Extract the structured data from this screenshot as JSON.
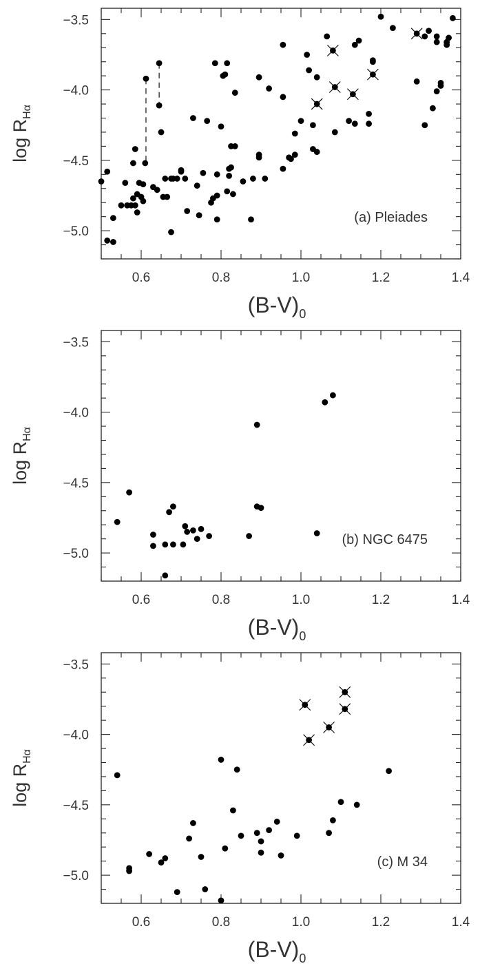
{
  "chart_data": [
    {
      "type": "scatter",
      "panel_label": "(a) Pleiades",
      "xlabel": "(B-V)",
      "xlabel_sub": "0",
      "ylabel": "log R",
      "ylabel_sub": "Hα",
      "xlim": [
        0.5,
        1.4
      ],
      "ylim": [
        -5.2,
        -3.42
      ],
      "xticks": [
        0.6,
        0.8,
        1.0,
        1.2,
        1.4
      ],
      "xtick_labels": [
        "0.6",
        "0.8",
        "1.0",
        "1.2",
        "1.4"
      ],
      "yticks": [
        -3.5,
        -4.0,
        -4.5,
        -5.0
      ],
      "ytick_labels": [
        "−3.5",
        "−4.0",
        "−4.5",
        "−5.0"
      ],
      "points": [
        [
          0.5,
          -4.65
        ],
        [
          0.515,
          -4.58
        ],
        [
          0.515,
          -5.07
        ],
        [
          0.53,
          -5.08
        ],
        [
          0.53,
          -4.91
        ],
        [
          0.55,
          -4.82
        ],
        [
          0.56,
          -4.66
        ],
        [
          0.565,
          -4.82
        ],
        [
          0.575,
          -4.82
        ],
        [
          0.58,
          -4.77
        ],
        [
          0.58,
          -4.52
        ],
        [
          0.585,
          -4.42
        ],
        [
          0.585,
          -4.82
        ],
        [
          0.59,
          -4.87
        ],
        [
          0.59,
          -4.74
        ],
        [
          0.595,
          -4.66
        ],
        [
          0.6,
          -4.76
        ],
        [
          0.605,
          -4.67
        ],
        [
          0.605,
          -4.79
        ],
        [
          0.61,
          -4.52
        ],
        [
          0.63,
          -4.69
        ],
        [
          0.64,
          -4.71
        ],
        [
          0.645,
          -4.11
        ],
        [
          0.65,
          -4.3
        ],
        [
          0.655,
          -4.76
        ],
        [
          0.66,
          -4.63
        ],
        [
          0.665,
          -4.76
        ],
        [
          0.675,
          -4.63
        ],
        [
          0.675,
          -5.01
        ],
        [
          0.68,
          -4.63
        ],
        [
          0.69,
          -4.63
        ],
        [
          0.7,
          -4.57
        ],
        [
          0.7,
          -4.58
        ],
        [
          0.71,
          -4.63
        ],
        [
          0.715,
          -4.86
        ],
        [
          0.73,
          -4.2
        ],
        [
          0.74,
          -4.68
        ],
        [
          0.745,
          -4.89
        ],
        [
          0.755,
          -4.59
        ],
        [
          0.765,
          -4.22
        ],
        [
          0.775,
          -4.8
        ],
        [
          0.78,
          -4.77
        ],
        [
          0.785,
          -3.81
        ],
        [
          0.79,
          -4.6
        ],
        [
          0.79,
          -4.75
        ],
        [
          0.79,
          -4.92
        ],
        [
          0.8,
          -4.26
        ],
        [
          0.805,
          -3.9
        ],
        [
          0.81,
          -3.89
        ],
        [
          0.815,
          -4.72
        ],
        [
          0.815,
          -3.81
        ],
        [
          0.82,
          -4.56
        ],
        [
          0.82,
          -4.61
        ],
        [
          0.825,
          -4.55
        ],
        [
          0.825,
          -4.4
        ],
        [
          0.83,
          -4.74
        ],
        [
          0.835,
          -4.4
        ],
        [
          0.835,
          -4.02
        ],
        [
          0.855,
          -4.65
        ],
        [
          0.875,
          -4.92
        ],
        [
          0.88,
          -4.63
        ],
        [
          0.895,
          -3.91
        ],
        [
          0.895,
          -4.46
        ],
        [
          0.895,
          -4.48
        ],
        [
          0.91,
          -4.63
        ],
        [
          0.92,
          -3.99
        ],
        [
          0.955,
          -3.68
        ],
        [
          0.955,
          -4.56
        ],
        [
          0.955,
          -4.05
        ],
        [
          0.97,
          -4.48
        ],
        [
          0.975,
          -4.49
        ],
        [
          0.985,
          -4.46
        ],
        [
          0.985,
          -4.31
        ],
        [
          1.0,
          -4.22
        ],
        [
          1.015,
          -3.75
        ],
        [
          1.02,
          -3.86
        ],
        [
          1.03,
          -4.25
        ],
        [
          1.03,
          -4.42
        ],
        [
          1.04,
          -3.91
        ],
        [
          1.04,
          -4.44
        ],
        [
          1.04,
          -4.1
        ],
        [
          1.065,
          -3.62
        ],
        [
          1.08,
          -3.72
        ],
        [
          1.085,
          -3.98
        ],
        [
          1.085,
          -4.3
        ],
        [
          1.12,
          -4.22
        ],
        [
          1.13,
          -4.03
        ],
        [
          1.135,
          -3.68
        ],
        [
          1.135,
          -4.24
        ],
        [
          1.145,
          -3.65
        ],
        [
          1.17,
          -4.17
        ],
        [
          1.17,
          -4.24
        ],
        [
          1.18,
          -3.89
        ],
        [
          1.18,
          -3.8
        ],
        [
          1.18,
          -3.79
        ],
        [
          1.2,
          -3.48
        ],
        [
          1.23,
          -3.56
        ],
        [
          1.29,
          -3.6
        ],
        [
          1.29,
          -3.94
        ],
        [
          1.31,
          -3.62
        ],
        [
          1.31,
          -4.25
        ],
        [
          1.32,
          -3.58
        ],
        [
          1.33,
          -4.13
        ],
        [
          1.34,
          -3.62
        ],
        [
          1.34,
          -3.66
        ],
        [
          1.34,
          -4.01
        ],
        [
          1.35,
          -3.95
        ],
        [
          1.35,
          -3.97
        ],
        [
          1.365,
          -3.66
        ],
        [
          1.365,
          -3.68
        ],
        [
          1.37,
          -3.63
        ],
        [
          1.38,
          -3.49
        ],
        [
          0.612,
          -3.92
        ],
        [
          0.645,
          -3.81
        ]
      ],
      "crossed": [
        [
          1.04,
          -4.1
        ],
        [
          1.08,
          -3.72
        ],
        [
          1.085,
          -3.98
        ],
        [
          1.13,
          -4.03
        ],
        [
          1.18,
          -3.89
        ],
        [
          1.29,
          -3.6
        ]
      ],
      "connectors": [
        [
          0.612,
          -3.92,
          0.612,
          -4.52
        ],
        [
          0.645,
          -3.81,
          0.645,
          -4.11
        ]
      ]
    },
    {
      "type": "scatter",
      "panel_label": "(b) NGC 6475",
      "xlabel": "(B-V)",
      "xlabel_sub": "0",
      "ylabel": "log R",
      "ylabel_sub": "Hα",
      "xlim": [
        0.5,
        1.4
      ],
      "ylim": [
        -5.2,
        -3.42
      ],
      "xticks": [
        0.6,
        0.8,
        1.0,
        1.2,
        1.4
      ],
      "xtick_labels": [
        "0.6",
        "0.8",
        "1.0",
        "1.2",
        "1.4"
      ],
      "yticks": [
        -3.5,
        -4.0,
        -4.5,
        -5.0
      ],
      "ytick_labels": [
        "−3.5",
        "−4.0",
        "−4.5",
        "−5.0"
      ],
      "points": [
        [
          0.54,
          -4.78
        ],
        [
          0.57,
          -4.57
        ],
        [
          0.63,
          -4.87
        ],
        [
          0.63,
          -4.95
        ],
        [
          0.66,
          -4.94
        ],
        [
          0.66,
          -5.16
        ],
        [
          0.67,
          -4.71
        ],
        [
          0.68,
          -4.67
        ],
        [
          0.68,
          -4.94
        ],
        [
          0.705,
          -4.94
        ],
        [
          0.71,
          -4.81
        ],
        [
          0.715,
          -4.85
        ],
        [
          0.73,
          -4.84
        ],
        [
          0.74,
          -4.9
        ],
        [
          0.75,
          -4.83
        ],
        [
          0.77,
          -4.88
        ],
        [
          0.87,
          -4.88
        ],
        [
          0.89,
          -4.09
        ],
        [
          0.89,
          -4.67
        ],
        [
          0.9,
          -4.68
        ],
        [
          1.04,
          -4.86
        ],
        [
          1.06,
          -3.93
        ],
        [
          1.08,
          -3.88
        ]
      ],
      "crossed": [],
      "connectors": []
    },
    {
      "type": "scatter",
      "panel_label": "(c) M 34",
      "xlabel": "(B-V)",
      "xlabel_sub": "0",
      "ylabel": "log R",
      "ylabel_sub": "Hα",
      "xlim": [
        0.5,
        1.4
      ],
      "ylim": [
        -5.2,
        -3.42
      ],
      "xticks": [
        0.6,
        0.8,
        1.0,
        1.2,
        1.4
      ],
      "xtick_labels": [
        "0.6",
        "0.8",
        "1.0",
        "1.2",
        "1.4"
      ],
      "yticks": [
        -3.5,
        -4.0,
        -4.5,
        -5.0
      ],
      "ytick_labels": [
        "−3.5",
        "−4.0",
        "−4.5",
        "−5.0"
      ],
      "points": [
        [
          0.54,
          -4.29
        ],
        [
          0.57,
          -4.95
        ],
        [
          0.57,
          -4.97
        ],
        [
          0.62,
          -4.85
        ],
        [
          0.65,
          -4.91
        ],
        [
          0.66,
          -4.88
        ],
        [
          0.69,
          -5.12
        ],
        [
          0.72,
          -4.74
        ],
        [
          0.73,
          -4.63
        ],
        [
          0.75,
          -4.87
        ],
        [
          0.76,
          -5.1
        ],
        [
          0.8,
          -4.18
        ],
        [
          0.8,
          -5.18
        ],
        [
          0.81,
          -4.81
        ],
        [
          0.83,
          -4.54
        ],
        [
          0.84,
          -4.25
        ],
        [
          0.85,
          -4.72
        ],
        [
          0.89,
          -4.7
        ],
        [
          0.9,
          -4.76
        ],
        [
          0.9,
          -4.84
        ],
        [
          0.92,
          -4.68
        ],
        [
          0.94,
          -4.62
        ],
        [
          0.95,
          -4.86
        ],
        [
          0.99,
          -4.72
        ],
        [
          1.01,
          -3.79
        ],
        [
          1.02,
          -4.04
        ],
        [
          1.07,
          -3.95
        ],
        [
          1.07,
          -4.7
        ],
        [
          1.08,
          -4.61
        ],
        [
          1.1,
          -4.48
        ],
        [
          1.11,
          -3.7
        ],
        [
          1.11,
          -3.82
        ],
        [
          1.14,
          -4.5
        ],
        [
          1.22,
          -4.26
        ]
      ],
      "crossed": [
        [
          1.01,
          -3.79
        ],
        [
          1.02,
          -4.04
        ],
        [
          1.07,
          -3.95
        ],
        [
          1.11,
          -3.7
        ],
        [
          1.11,
          -3.82
        ]
      ],
      "connectors": []
    }
  ]
}
